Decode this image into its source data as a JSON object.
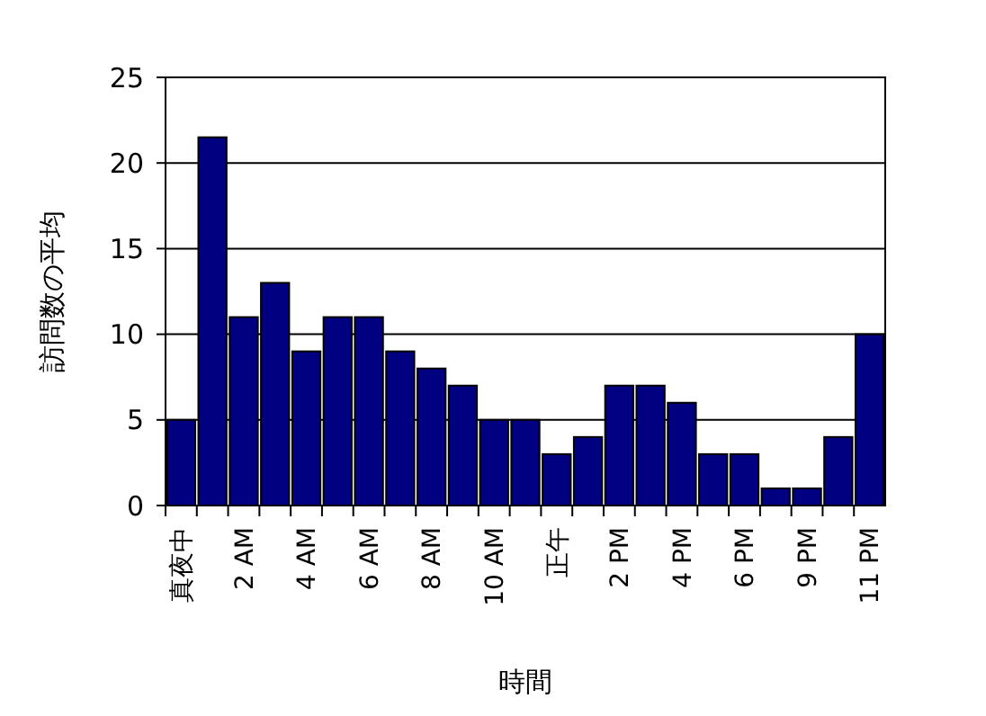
{
  "chart_data": {
    "type": "bar",
    "xlabel": "時間",
    "ylabel": "訪問数の平均",
    "categories": [
      "真夜中",
      null,
      "2 AM",
      null,
      "4 AM",
      null,
      "6 AM",
      null,
      "8 AM",
      null,
      "10 AM",
      null,
      "正午",
      null,
      "2 PM",
      null,
      "4 PM",
      null,
      "6 PM",
      null,
      "9 PM",
      null,
      "11 PM"
    ],
    "values": [
      5,
      21.5,
      11,
      13,
      9,
      11,
      11,
      9,
      8,
      7,
      5,
      5,
      3,
      4,
      7,
      7,
      6,
      3,
      3,
      1,
      1,
      4,
      10
    ],
    "color": "#000080",
    "ylim": [
      0,
      25
    ],
    "yticks": [
      0,
      5,
      10,
      15,
      20,
      25
    ],
    "grid": "y"
  }
}
